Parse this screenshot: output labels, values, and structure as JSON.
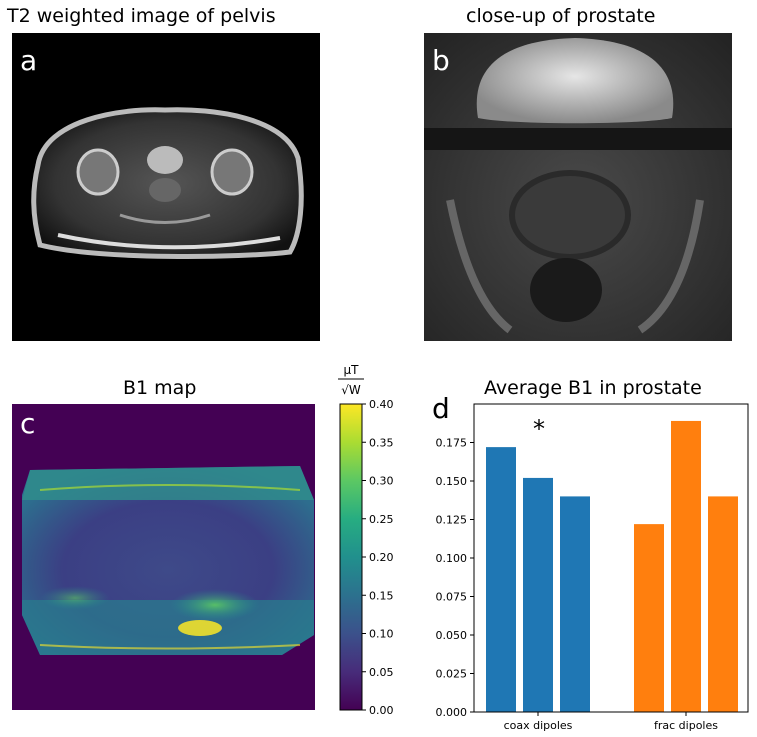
{
  "panels": {
    "a": {
      "title": "T2 weighted image of pelvis",
      "letter": "a"
    },
    "b": {
      "title": "close-up of prostate",
      "letter": "b"
    },
    "c": {
      "title": "B1 map",
      "letter": "c"
    },
    "d": {
      "title": "Average B1 in prostate",
      "letter": "d"
    }
  },
  "colorbar": {
    "unit_numerator": "μT",
    "unit_denominator": "√W",
    "ticks": [
      "0.40",
      "0.35",
      "0.30",
      "0.25",
      "0.20",
      "0.15",
      "0.10",
      "0.05",
      "0.00"
    ],
    "colormap": "viridis",
    "range": [
      0.0,
      0.4
    ]
  },
  "chart_data": {
    "type": "bar",
    "title": "Average B1 in prostate",
    "xlabel": "",
    "ylabel": "",
    "ylim": [
      0,
      0.2
    ],
    "yticks": [
      "0.000",
      "0.025",
      "0.050",
      "0.075",
      "0.100",
      "0.125",
      "0.150",
      "0.175"
    ],
    "groups": [
      {
        "label": "coax dipoles",
        "color": "#1f77b4",
        "values": [
          0.172,
          0.152,
          0.14
        ]
      },
      {
        "label": "frac dipoles",
        "color": "#ff7f0e",
        "values": [
          0.122,
          0.189,
          0.14
        ]
      }
    ],
    "annotation": "*"
  }
}
